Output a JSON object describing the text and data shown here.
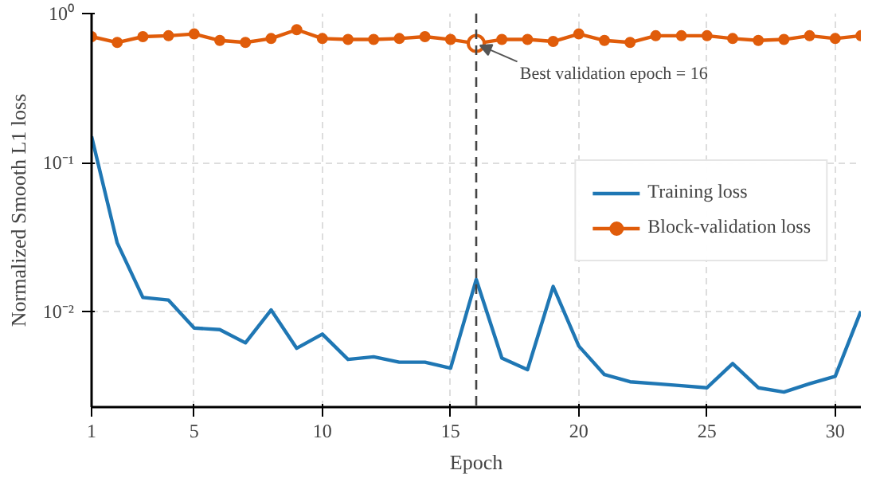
{
  "chart_data": {
    "type": "line",
    "xlabel": "Epoch",
    "ylabel": "Normalized Smooth L1 loss",
    "x": [
      1,
      2,
      3,
      4,
      5,
      6,
      7,
      8,
      9,
      10,
      11,
      12,
      13,
      14,
      15,
      16,
      17,
      18,
      19,
      20,
      21,
      22,
      23,
      24,
      25,
      26,
      27,
      28,
      29,
      30,
      31
    ],
    "series": [
      {
        "name": "Training loss",
        "color": "#1f77b4",
        "marker": "none",
        "values": [
          0.15,
          0.029,
          0.0125,
          0.012,
          0.0078,
          0.0076,
          0.0062,
          0.0103,
          0.0057,
          0.0071,
          0.0048,
          0.005,
          0.0046,
          0.0046,
          0.0042,
          0.0165,
          0.0049,
          0.0041,
          0.0148,
          0.0059,
          0.0038,
          0.0034,
          0.0033,
          0.0032,
          0.0031,
          0.0045,
          0.0031,
          0.0029,
          0.0033,
          0.0037,
          0.0101
        ]
      },
      {
        "name": "Block-validation loss",
        "color": "#e05c0a",
        "marker": "circle",
        "values": [
          0.7,
          0.64,
          0.7,
          0.71,
          0.73,
          0.66,
          0.64,
          0.68,
          0.78,
          0.68,
          0.67,
          0.67,
          0.68,
          0.7,
          0.67,
          0.63,
          0.67,
          0.67,
          0.65,
          0.73,
          0.66,
          0.64,
          0.71,
          0.71,
          0.71,
          0.68,
          0.66,
          0.67,
          0.71,
          0.68,
          0.71
        ]
      }
    ],
    "xlim": [
      1,
      31
    ],
    "xticks": [
      1,
      5,
      10,
      15,
      20,
      25,
      30
    ],
    "ylim": [
      0.0023,
      1.0
    ],
    "yticks": [
      {
        "value": 0.01,
        "label": "10⁻²"
      },
      {
        "value": 0.1,
        "label": "10⁻¹"
      },
      {
        "value": 1,
        "label": "10⁰"
      }
    ],
    "log": "y",
    "grid": true,
    "legend": "right",
    "ref_lines": [
      {
        "axis": "x",
        "value": 16,
        "label": null,
        "color": "#444444",
        "line_style": "dashed"
      }
    ],
    "annotations": [
      {
        "text": "Best validation epoch = 16",
        "x": 16,
        "y": 0.63
      }
    ]
  }
}
